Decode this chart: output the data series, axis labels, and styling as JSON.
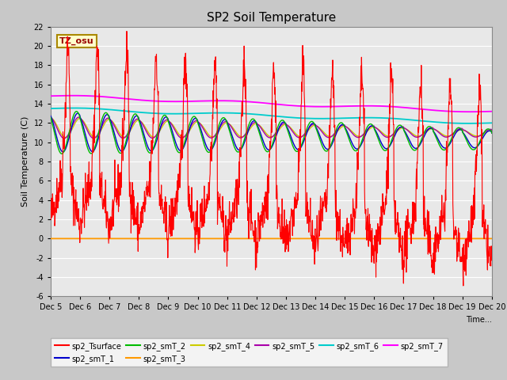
{
  "title": "SP2 Soil Temperature",
  "ylabel": "Soil Temperature (C)",
  "xlabel": "Time...",
  "ylim": [
    -6,
    22
  ],
  "xlim": [
    0,
    360
  ],
  "fig_bg_color": "#c8c8c8",
  "plot_bg_color": "#e8e8e8",
  "tz_label": "TZ_osu",
  "series_colors": {
    "sp2_Tsurface": "#ff0000",
    "sp2_smT_1": "#0000cc",
    "sp2_smT_2": "#00bb00",
    "sp2_smT_3": "#ff9900",
    "sp2_smT_4": "#cccc00",
    "sp2_smT_5": "#aa00aa",
    "sp2_smT_6": "#00cccc",
    "sp2_smT_7": "#ff00ff"
  },
  "xtick_labels": [
    "Dec 5",
    "Dec 6",
    "Dec 7",
    "Dec 8",
    "Dec 9",
    "Dec 10",
    "Dec 11",
    "Dec 12",
    "Dec 13",
    "Dec 14",
    "Dec 15",
    "Dec 16",
    "Dec 17",
    "Dec 18",
    "Dec 19",
    "Dec 20"
  ],
  "ytick_values": [
    -6,
    -4,
    -2,
    0,
    2,
    4,
    6,
    8,
    10,
    12,
    14,
    16,
    18,
    20,
    22
  ]
}
